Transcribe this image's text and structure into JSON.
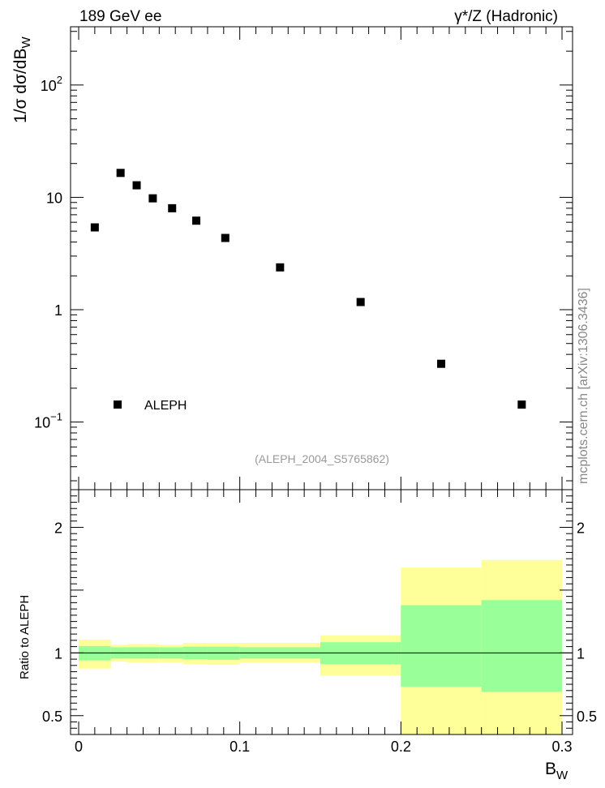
{
  "header": {
    "left_label": "189 GeV ee",
    "right_label": "γ*/Z (Hadronic)"
  },
  "side_label": "mcplots.cern.ch [arXiv:1306.3436]",
  "colors": {
    "inner_band": "#99ff99",
    "outer_band": "#ffff99",
    "marker": "#000000",
    "watermark": "#999999"
  },
  "chart_data": {
    "type": "scatter",
    "title_left": "189 GeV ee",
    "title_right": "γ*/Z (Hadronic)",
    "analysis_id": "(ALEPH_2004_S5765862)",
    "xlabel": "B",
    "xlabel_sub": "W",
    "ylabel": "1/σ dσ/dB",
    "ylabel_sub": "W",
    "xlim": [
      -0.007,
      0.307
    ],
    "ylim_log": [
      0.025,
      330
    ],
    "yscale": "log",
    "y_ticks": [
      {
        "value": 0.1,
        "base": "10",
        "exp": "−1"
      },
      {
        "value": 1,
        "base": "1",
        "exp": ""
      },
      {
        "value": 10,
        "base": "10",
        "exp": ""
      },
      {
        "value": 100,
        "base": "10",
        "exp": "2"
      }
    ],
    "legend": {
      "label": "ALEPH",
      "placement": "bottom-left"
    },
    "series": [
      {
        "name": "ALEPH",
        "x": [
          0.01,
          0.026,
          0.036,
          0.046,
          0.058,
          0.073,
          0.091,
          0.125,
          0.175,
          0.225,
          0.275
        ],
        "y": [
          5.4,
          16.5,
          12.8,
          9.8,
          8.0,
          6.2,
          4.35,
          2.38,
          1.17,
          0.33,
          0.143
        ]
      }
    ],
    "ratio": {
      "ylabel": "Ratio to ALEPH",
      "ylim": [
        0.35,
        2.3
      ],
      "y_ticks": [
        0.5,
        1,
        2
      ],
      "x_ticks": [
        0,
        0.1,
        0.2,
        0.3
      ],
      "reference": 1,
      "bins": [
        {
          "lo": 0.0,
          "hi": 0.02,
          "inner": [
            0.94,
            1.055
          ],
          "outer": [
            0.875,
            1.105
          ]
        },
        {
          "lo": 0.02,
          "hi": 0.03,
          "inner": [
            0.955,
            1.045
          ],
          "outer": [
            0.93,
            1.065
          ]
        },
        {
          "lo": 0.03,
          "hi": 0.04,
          "inner": [
            0.955,
            1.045
          ],
          "outer": [
            0.925,
            1.07
          ]
        },
        {
          "lo": 0.04,
          "hi": 0.05,
          "inner": [
            0.955,
            1.045
          ],
          "outer": [
            0.92,
            1.07
          ]
        },
        {
          "lo": 0.05,
          "hi": 0.065,
          "inner": [
            0.955,
            1.045
          ],
          "outer": [
            0.925,
            1.065
          ]
        },
        {
          "lo": 0.065,
          "hi": 0.08,
          "inner": [
            0.95,
            1.05
          ],
          "outer": [
            0.91,
            1.08
          ]
        },
        {
          "lo": 0.08,
          "hi": 0.1,
          "inner": [
            0.945,
            1.05
          ],
          "outer": [
            0.905,
            1.08
          ]
        },
        {
          "lo": 0.1,
          "hi": 0.15,
          "inner": [
            0.955,
            1.045
          ],
          "outer": [
            0.92,
            1.08
          ]
        },
        {
          "lo": 0.15,
          "hi": 0.2,
          "inner": [
            0.91,
            1.085
          ],
          "outer": [
            0.82,
            1.14
          ]
        },
        {
          "lo": 0.2,
          "hi": 0.25,
          "inner": [
            0.73,
            1.38
          ],
          "outer": [
            0.35,
            1.68
          ]
        },
        {
          "lo": 0.25,
          "hi": 0.3,
          "inner": [
            0.69,
            1.42
          ],
          "outer": [
            0.35,
            1.74
          ]
        }
      ]
    }
  }
}
